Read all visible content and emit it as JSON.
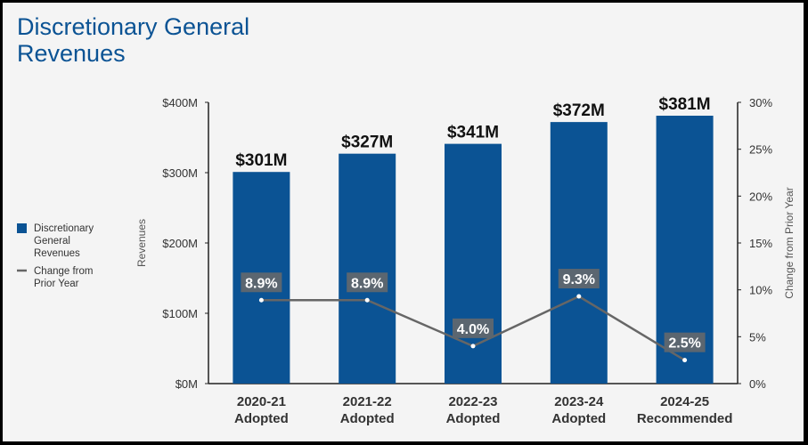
{
  "title_line1": "Discretionary General",
  "title_line2": "Revenues",
  "colors": {
    "bar": "#0b5394",
    "line": "#666666",
    "label_bg": "#5b6670",
    "title": "#0b5394"
  },
  "chart_data": {
    "type": "bar",
    "categories": [
      [
        "2020-21",
        "Adopted"
      ],
      [
        "2021-22",
        "Adopted"
      ],
      [
        "2022-23",
        "Adopted"
      ],
      [
        "2023-24",
        "Adopted"
      ],
      [
        "2024-25",
        "Recommended"
      ]
    ],
    "series": [
      {
        "name": "Discretionary General Revenues",
        "type": "bar",
        "axis": "left",
        "values": [
          301,
          327,
          341,
          372,
          381
        ],
        "labels": [
          "$301M",
          "$327M",
          "$341M",
          "$372M",
          "$381M"
        ]
      },
      {
        "name": "Change from Prior Year",
        "type": "line",
        "axis": "right",
        "values": [
          8.9,
          8.9,
          4.0,
          9.3,
          2.5
        ],
        "labels": [
          "8.9%",
          "8.9%",
          "4.0%",
          "9.3%",
          "2.5%"
        ]
      }
    ],
    "legend_lines": [
      [
        "Discretionary",
        "General",
        "Revenues"
      ],
      [
        "Change from",
        "Prior Year"
      ]
    ],
    "legend_position": "left",
    "ylabel": "Revenues",
    "y2label": "Change from Prior Year",
    "ylim": [
      0,
      400
    ],
    "y2lim": [
      0,
      30
    ],
    "yticks": [
      "$0M",
      "$100M",
      "$200M",
      "$300M",
      "$400M"
    ],
    "y2ticks": [
      "0%",
      "5%",
      "10%",
      "15%",
      "20%",
      "25%",
      "30%"
    ],
    "grid": false
  }
}
